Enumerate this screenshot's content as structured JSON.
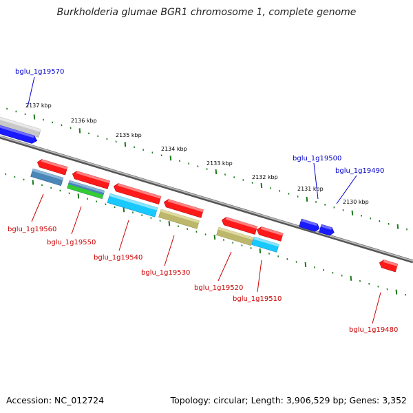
{
  "title": "Burkholderia glumae BGR1 chromosome 1, complete genome",
  "footer": {
    "accession": "Accession: NC_012724",
    "stats": "Topology: circular; Length: 3,906,529 bp; Genes: 3,352"
  },
  "colors": {
    "forward_label": "#0000cc",
    "reverse_label": "#cc0000",
    "backbone": "#8a8a8a",
    "tick": "#1a7a1a",
    "red_gene": "#ff1a1a",
    "blue_gene": "#1a1aff",
    "steel_blue_gene": "#4a86b8",
    "green_gene": "#33cc33",
    "cyan_gene": "#19c8ff",
    "khaki_gene": "#bdb76b",
    "gray_gene": "#c0c0c0"
  },
  "scale_labels": [
    "2137 kbp",
    "2136 kbp",
    "2135 kbp",
    "2134 kbp",
    "2133 kbp",
    "2132 kbp",
    "2131 kbp",
    "2130 kbp"
  ],
  "forward_gene_labels": [
    "bglu_1g19570",
    "bglu_1g19500",
    "bglu_1g19490"
  ],
  "reverse_gene_labels": [
    "bglu_1g19560",
    "bglu_1g19550",
    "bglu_1g19540",
    "bglu_1g19530",
    "bglu_1g19520",
    "bglu_1g19510",
    "bglu_1g19480"
  ]
}
